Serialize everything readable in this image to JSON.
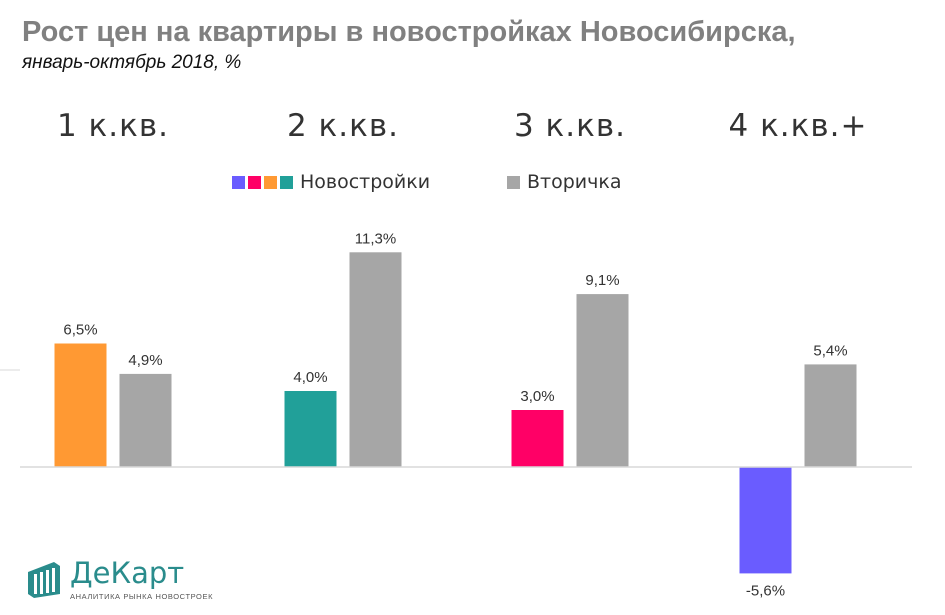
{
  "title": "Рост цен на квартиры в новостройках Новосибирска,",
  "subtitle": "январь-октябрь 2018, %",
  "legend": {
    "new": {
      "label": "Новостройки",
      "swatch_colors": [
        "#6a5cff",
        "#ff0066",
        "#ff9933",
        "#21a099"
      ]
    },
    "secondary": {
      "label": "Вторичка",
      "color": "#a6a6a6"
    }
  },
  "logo": {
    "name": "ДеКарт",
    "tagline": "АНАЛИТИКА РЫНКА НОВОСТРОЕК",
    "color": "#2a8c8c"
  },
  "chart_data": {
    "type": "bar",
    "categories": [
      "1 к.кв.",
      "2 к.кв.",
      "3 к.кв.",
      "4 к.кв.+"
    ],
    "series": [
      {
        "name": "Новостройки",
        "values": [
          6.5,
          4.0,
          3.0,
          -5.6
        ],
        "labels": [
          "6,5%",
          "4,0%",
          "3,0%",
          "-5,6%"
        ],
        "colors": [
          "#ff9933",
          "#21a099",
          "#ff0066",
          "#6a5cff"
        ]
      },
      {
        "name": "Вторичка",
        "values": [
          4.9,
          11.3,
          9.1,
          5.4
        ],
        "labels": [
          "4,9%",
          "11,3%",
          "9,1%",
          "5,4%"
        ],
        "colors": [
          "#a6a6a6",
          "#a6a6a6",
          "#a6a6a6",
          "#a6a6a6"
        ]
      }
    ],
    "ylim": [
      -6,
      12
    ],
    "grid": false,
    "legend_position": "top"
  }
}
